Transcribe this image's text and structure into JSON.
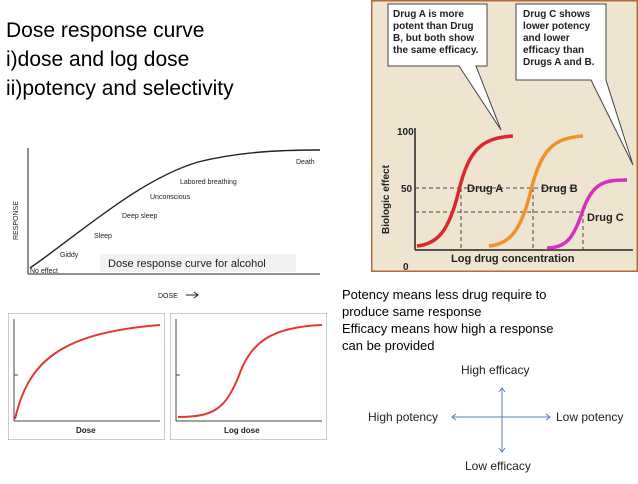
{
  "title_lines": [
    "Dose response curve",
    "i)dose and log dose",
    "ii)potency and selectivity"
  ],
  "alcohol_chart": {
    "ylabel": "RESPONSE",
    "xlabel": "DOSE",
    "caption": "Dose response curve for alcohol",
    "stages": [
      "No effect",
      "Giddy",
      "Sleep",
      "Deep sleep",
      "Unconscious",
      "Labored breathing",
      "Death"
    ]
  },
  "dose_charts": {
    "left_xlabel": "Dose",
    "right_xlabel": "Log dose"
  },
  "drug_chart": {
    "callout_a": [
      "Drug A is more",
      "potent than Drug",
      "B, but both show",
      "the same efficacy."
    ],
    "callout_c": [
      "Drug C shows",
      "lower potency",
      "and lower",
      "efficacy than",
      "Drugs A and B."
    ],
    "ylabel": "Biologic effect",
    "xlabel": "Log drug concentration",
    "y_ticks": [
      "100",
      "50",
      "0"
    ],
    "drug_labels": [
      "Drug A",
      "Drug B",
      "Drug C"
    ],
    "colors": {
      "drug_a": "#d9292c",
      "drug_b": "#f0922a",
      "drug_c": "#d62fbf",
      "background": "#efe4cf",
      "border": "#b46b3e"
    }
  },
  "definitions": [
    "Potency means less drug require to",
    "produce same response",
    "Efficacy means how high a response",
    "can be provided"
  ],
  "quadrant": {
    "top": "High efficacy",
    "bottom": "Low efficacy",
    "left": "High potency",
    "right": "Low potency"
  }
}
